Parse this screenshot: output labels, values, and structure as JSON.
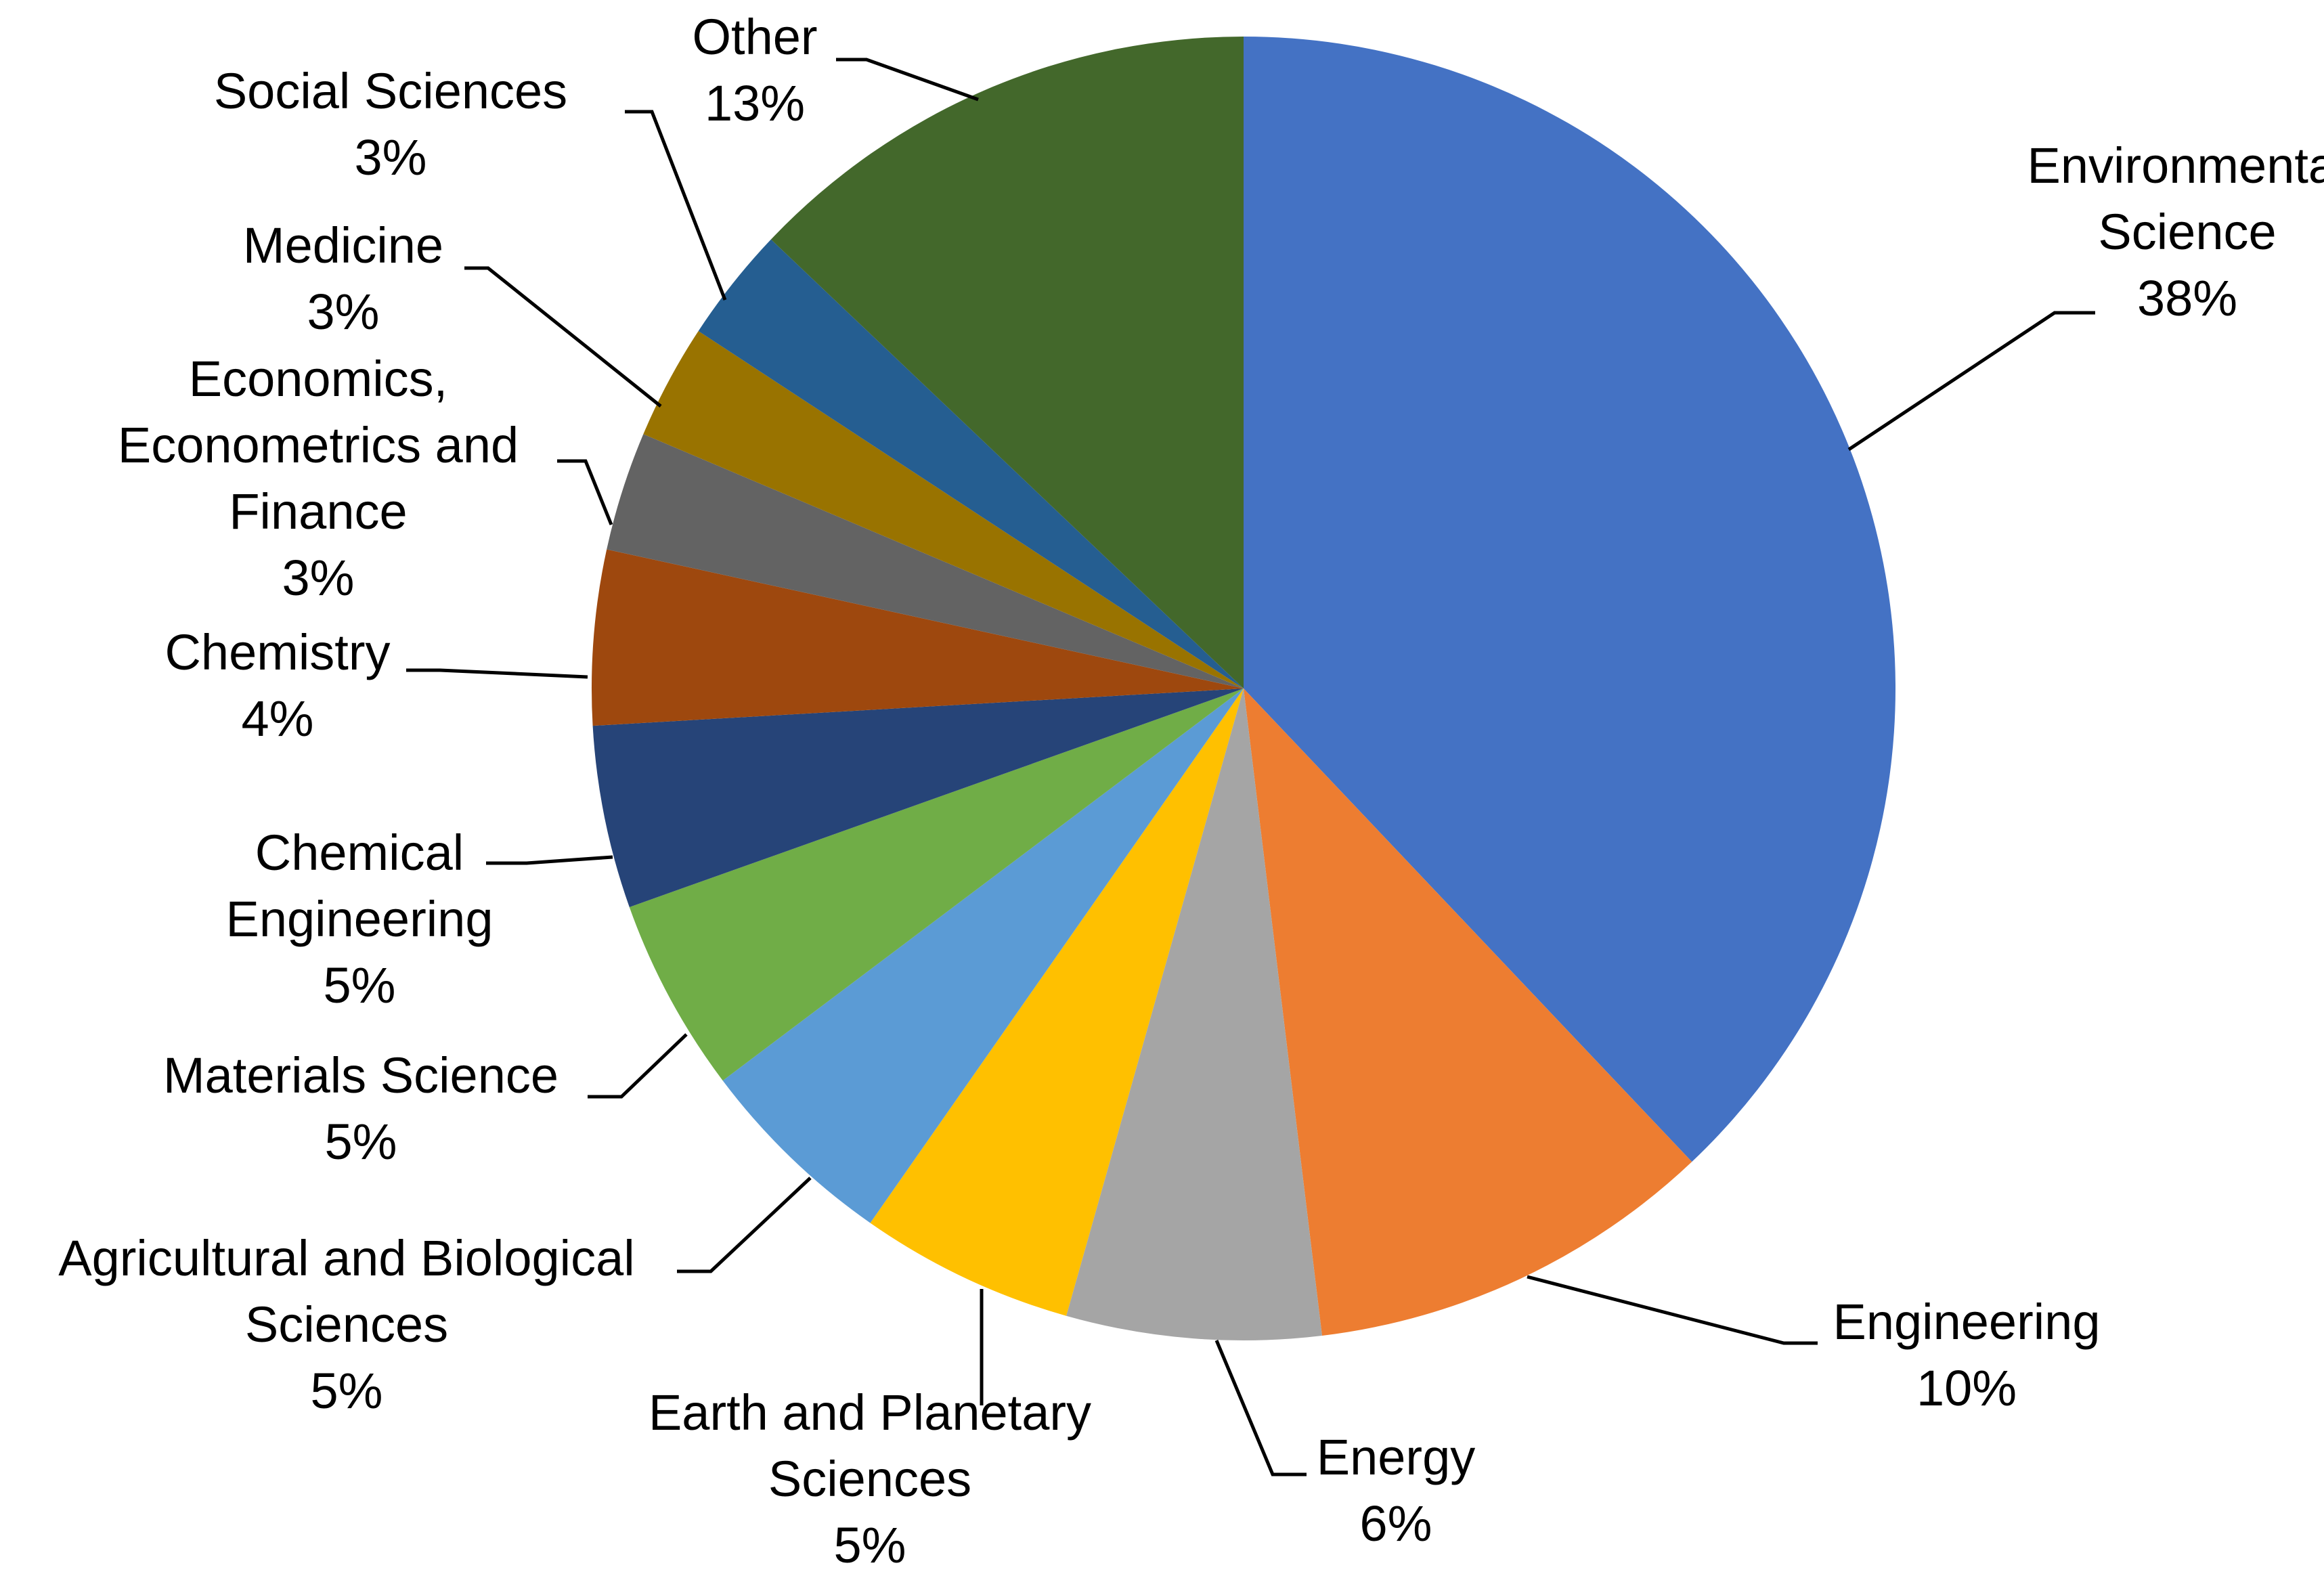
{
  "chart_data": {
    "type": "pie",
    "title": "",
    "start": "12 o'clock",
    "direction": "clockwise",
    "slices": [
      {
        "label": [
          "Environmental",
          "Science"
        ],
        "value": "38%",
        "percent": 38.5,
        "color": "#4472C4"
      },
      {
        "label": [
          "Engineering"
        ],
        "value": "10%",
        "percent": 10.3,
        "color": "#ED7D31"
      },
      {
        "label": [
          "Energy"
        ],
        "value": "6%",
        "percent": 6.4,
        "color": "#A5A5A5"
      },
      {
        "label": [
          "Earth and Planetary",
          "Sciences"
        ],
        "value": "5%",
        "percent": 5.4,
        "color": "#FFC000"
      },
      {
        "label": [
          "Agricultural and Biological",
          "Sciences"
        ],
        "value": "5%",
        "percent": 5.1,
        "color": "#5B9BD5"
      },
      {
        "label": [
          "Materials Science"
        ],
        "value": "5%",
        "percent": 4.9,
        "color": "#70AD47"
      },
      {
        "label": [
          "Chemical",
          "Engineering"
        ],
        "value": "5%",
        "percent": 4.6,
        "color": "#264478"
      },
      {
        "label": [
          "Chemistry"
        ],
        "value": "4%",
        "percent": 4.4,
        "color": "#9E480E"
      },
      {
        "label": [
          "Economics,",
          "Econometrics and",
          "Finance"
        ],
        "value": "3%",
        "percent": 3.0,
        "color": "#636363"
      },
      {
        "label": [
          "Medicine"
        ],
        "value": "3%",
        "percent": 2.9,
        "color": "#997300"
      },
      {
        "label": [
          "Social Sciences"
        ],
        "value": "3%",
        "percent": 2.9,
        "color": "#255E91"
      },
      {
        "label": [
          "Other"
        ],
        "value": "13%",
        "percent": 13.1,
        "color": "#43682B"
      }
    ]
  }
}
